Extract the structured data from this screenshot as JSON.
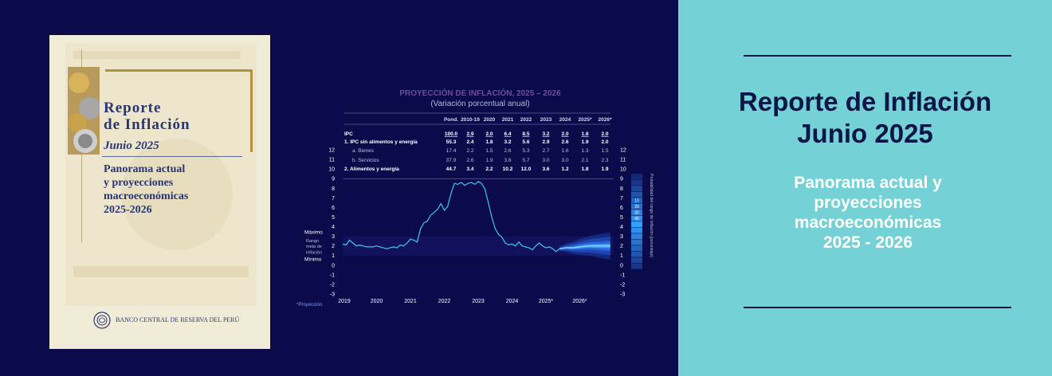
{
  "cover": {
    "title_line1": "Reporte",
    "title_line2": "de Inflación",
    "date": "Junio 2025",
    "subtitle_line1": "Panorama actual",
    "subtitle_line2": "y proyecciones",
    "subtitle_line3": "macroeconómicas",
    "subtitle_line4": "2025-2026",
    "bank": "BANCO CENTRAL DE RESERVA DEL PERÚ"
  },
  "chart_data": {
    "type": "line",
    "title": "PROYECCIÓN DE INFLACIÓN, 2025 – 2026",
    "subtitle": "(Variación porcentual anual)",
    "table": {
      "headers": [
        "",
        "Pond.",
        "2010-19",
        "2020",
        "2021",
        "2022",
        "2023",
        "2024",
        "2025*",
        "2026*"
      ],
      "rows": [
        {
          "label": "IPC",
          "values": [
            "100.0",
            "2.9",
            "2.0",
            "6.4",
            "8.5",
            "3.2",
            "2.0",
            "1.8",
            "2.0"
          ]
        },
        {
          "label": "1. IPC sin alimentos y energía",
          "values": [
            "55.3",
            "2.4",
            "1.8",
            "3.2",
            "5.6",
            "2.9",
            "2.6",
            "1.9",
            "2.0"
          ]
        },
        {
          "label": "a. Bienes",
          "values": [
            "17.4",
            "2.2",
            "1.5",
            "2.6",
            "5.3",
            "2.7",
            "1.6",
            "1.3",
            "1.5"
          ]
        },
        {
          "label": "b. Servicios",
          "values": [
            "37.9",
            "2.6",
            "1.9",
            "3.6",
            "5.7",
            "3.0",
            "3.0",
            "2.1",
            "2.3"
          ]
        },
        {
          "label": "2. Alimentos y energía",
          "values": [
            "44.7",
            "3.4",
            "2.2",
            "10.2",
            "12.0",
            "3.6",
            "1.2",
            "1.8",
            "1.9"
          ]
        }
      ]
    },
    "y_ticks": [
      12,
      11,
      10,
      9,
      8,
      7,
      6,
      5,
      4,
      3,
      2,
      1,
      0,
      -1,
      -2,
      -3
    ],
    "ylim": [
      -3,
      12
    ],
    "x_ticks": [
      "2019",
      "2020",
      "2021",
      "2022",
      "2023",
      "2024",
      "2025",
      "2026"
    ],
    "x_tick_asterisk": "*",
    "target_range": {
      "label_max": "Máximo",
      "label_range": "Rango meta de inflación",
      "label_min": "Mínimo",
      "min": 1,
      "max": 3
    },
    "fan_label": "Probabilidad del rango de inflación (porcentaje)",
    "fan_probs": [
      "10",
      "20",
      "30",
      "40"
    ],
    "footnote": "*Proyección.",
    "series": [
      {
        "name": "IPC",
        "x": [
          2019.0,
          2019.1,
          2019.2,
          2019.3,
          2019.4,
          2019.5,
          2019.6,
          2019.7,
          2019.8,
          2019.9,
          2020.0,
          2020.1,
          2020.2,
          2020.3,
          2020.4,
          2020.5,
          2020.6,
          2020.7,
          2020.8,
          2020.9,
          2021.0,
          2021.1,
          2021.2,
          2021.3,
          2021.4,
          2021.5,
          2021.6,
          2021.7,
          2021.8,
          2021.9,
          2022.0,
          2022.1,
          2022.2,
          2022.3,
          2022.4,
          2022.5,
          2022.6,
          2022.7,
          2022.8,
          2022.9,
          2023.0,
          2023.1,
          2023.2,
          2023.3,
          2023.4,
          2023.5,
          2023.6,
          2023.7,
          2023.8,
          2023.9,
          2024.0,
          2024.1,
          2024.2,
          2024.3,
          2024.4,
          2024.5,
          2024.6,
          2024.7,
          2024.8,
          2024.9,
          2025.0,
          2025.1,
          2025.2,
          2025.3,
          2025.4
        ],
        "values": [
          2.2,
          2.1,
          2.6,
          2.3,
          2.0,
          2.1,
          2.0,
          1.9,
          1.9,
          1.9,
          2.0,
          1.9,
          1.8,
          1.7,
          1.8,
          1.9,
          1.8,
          2.1,
          2.0,
          2.3,
          2.7,
          2.6,
          2.4,
          3.8,
          4.4,
          4.6,
          5.2,
          5.5,
          5.8,
          6.4,
          5.7,
          6.1,
          7.5,
          8.5,
          8.4,
          8.6,
          8.3,
          8.5,
          8.6,
          8.4,
          8.7,
          8.5,
          7.9,
          6.5,
          5.0,
          3.8,
          3.2,
          2.9,
          2.3,
          2.1,
          2.2,
          2.0,
          2.4,
          2.0,
          1.9,
          1.8,
          1.6,
          2.0,
          2.3,
          2.0,
          1.8,
          1.9,
          1.7,
          1.4,
          1.7
        ]
      },
      {
        "name": "Proyección",
        "x": [
          2025.4,
          2025.6,
          2025.8,
          2026.0,
          2026.3,
          2026.6,
          2026.9
        ],
        "values": [
          1.7,
          1.8,
          1.8,
          1.9,
          2.0,
          2.0,
          2.0
        ]
      }
    ]
  },
  "right": {
    "title_line1": "Reporte de Inflación",
    "title_line2": "Junio 2025",
    "subtitle_line1": "Panorama actual y",
    "subtitle_line2": "proyecciones",
    "subtitle_line3": "macroeconómicas",
    "subtitle_line4": "2025 - 2026"
  },
  "colors": {
    "navy": "#0b0a4a",
    "teal": "#74d1d6",
    "dark_text": "#0b1647",
    "line": "#3cc8f0"
  }
}
